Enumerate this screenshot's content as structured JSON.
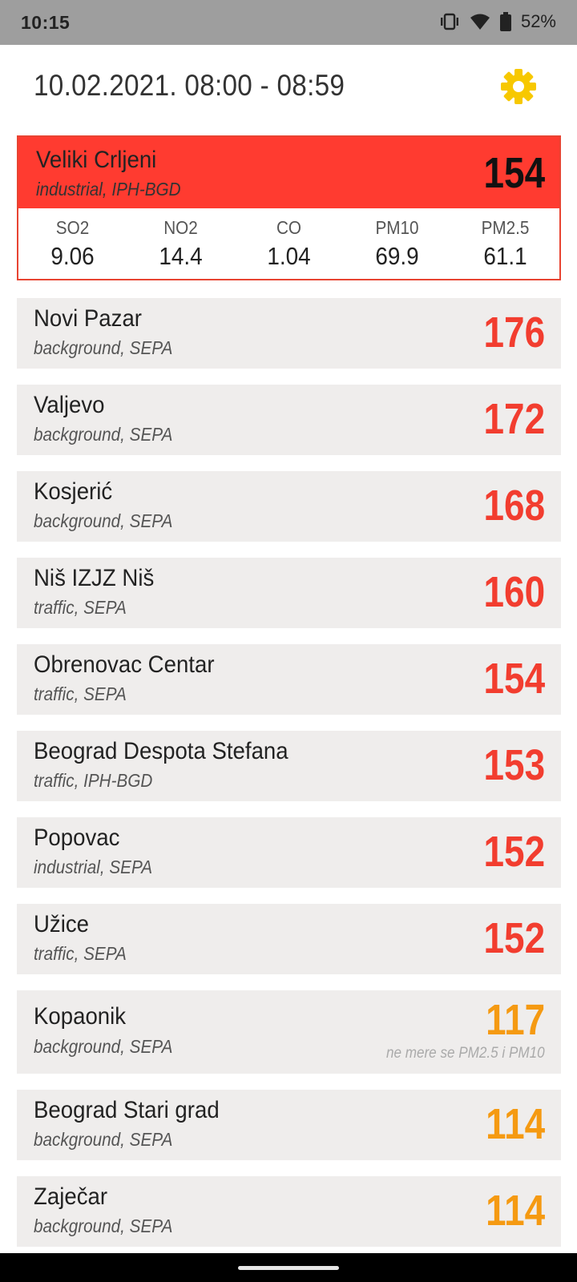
{
  "status_bar": {
    "time": "10:15",
    "battery": "52%",
    "icons": [
      "vibrate-icon",
      "wifi-icon",
      "battery-icon"
    ]
  },
  "header": {
    "title": "10.02.2021. 08:00 - 08:59",
    "settings_icon": "gear-icon"
  },
  "colors": {
    "red_header": "#ff3b30",
    "red_value": "#f23d2f",
    "orange_value": "#f59a12",
    "gear": "#f7c800",
    "row_bg": "#efedec"
  },
  "expanded_station": {
    "name": "Veliki Crljeni",
    "type": "industrial, IPH-BGD",
    "value": "154",
    "pollutants": [
      {
        "label": "SO2",
        "value": "9.06"
      },
      {
        "label": "NO2",
        "value": "14.4"
      },
      {
        "label": "CO",
        "value": "1.04"
      },
      {
        "label": "PM10",
        "value": "69.9"
      },
      {
        "label": "PM2.5",
        "value": "61.1"
      }
    ]
  },
  "stations": [
    {
      "name": "Novi Pazar",
      "type": "background, SEPA",
      "value": "176",
      "level": "red"
    },
    {
      "name": "Valjevo",
      "type": "background, SEPA",
      "value": "172",
      "level": "red"
    },
    {
      "name": "Kosjerić",
      "type": "background, SEPA",
      "value": "168",
      "level": "red"
    },
    {
      "name": "Niš IZJZ Niš",
      "type": "traffic, SEPA",
      "value": "160",
      "level": "red"
    },
    {
      "name": "Obrenovac Centar",
      "type": "traffic, SEPA",
      "value": "154",
      "level": "red"
    },
    {
      "name": "Beograd Despota Stefana",
      "type": "traffic, IPH-BGD",
      "value": "153",
      "level": "red"
    },
    {
      "name": "Popovac",
      "type": "industrial, SEPA",
      "value": "152",
      "level": "red"
    },
    {
      "name": "Užice",
      "type": "traffic, SEPA",
      "value": "152",
      "level": "red"
    },
    {
      "name": "Kopaonik",
      "type": "background, SEPA",
      "value": "117",
      "level": "orange",
      "note": "ne mere se PM2.5 i PM10"
    },
    {
      "name": "Beograd Stari grad",
      "type": "background, SEPA",
      "value": "114",
      "level": "orange"
    },
    {
      "name": "Zaječar",
      "type": "background, SEPA",
      "value": "114",
      "level": "orange"
    }
  ]
}
